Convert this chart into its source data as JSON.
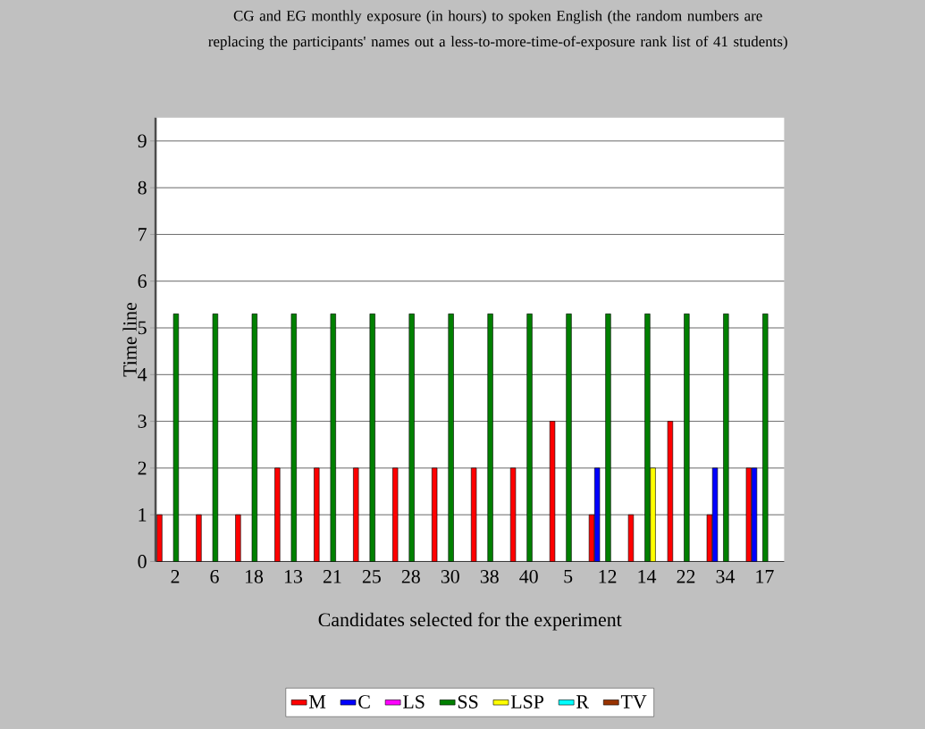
{
  "chart_data": {
    "type": "bar",
    "title": "CG and EG monthly exposure (in hours) to spoken English (the random numbers are replacing the participants' names out a less-to-more-time-of-exposure rank list of 41 students)",
    "xlabel": "Candidates selected for the experiment",
    "ylabel": "Time line",
    "categories": [
      "2",
      "6",
      "18",
      "13",
      "21",
      "25",
      "28",
      "30",
      "38",
      "40",
      "5",
      "12",
      "14",
      "22",
      "34",
      "17"
    ],
    "series": [
      {
        "name": "M",
        "color": "#ff0000",
        "values": [
          1,
          1,
          1,
          2,
          2,
          2,
          2,
          2,
          2,
          2,
          3,
          1,
          1,
          3,
          1,
          2
        ]
      },
      {
        "name": "C",
        "color": "#0000ff",
        "values": [
          null,
          null,
          null,
          null,
          null,
          null,
          null,
          null,
          null,
          null,
          null,
          2,
          null,
          null,
          2,
          2
        ]
      },
      {
        "name": "LS",
        "color": "#ff00ff",
        "values": [
          null,
          null,
          null,
          null,
          null,
          null,
          null,
          null,
          null,
          null,
          null,
          null,
          null,
          null,
          null,
          null
        ]
      },
      {
        "name": "SS",
        "color": "#008000",
        "values": [
          5.3,
          5.3,
          5.3,
          5.3,
          5.3,
          5.3,
          5.3,
          5.3,
          5.3,
          5.3,
          5.3,
          5.3,
          5.3,
          5.3,
          5.3,
          5.3
        ]
      },
      {
        "name": "LSP",
        "color": "#ffff00",
        "values": [
          null,
          null,
          null,
          null,
          null,
          null,
          null,
          null,
          null,
          null,
          null,
          null,
          2,
          null,
          null,
          null
        ]
      },
      {
        "name": "R",
        "color": "#00ffff",
        "values": [
          null,
          null,
          null,
          null,
          null,
          null,
          null,
          null,
          null,
          null,
          null,
          null,
          null,
          null,
          null,
          null
        ]
      },
      {
        "name": "TV",
        "color": "#993300",
        "values": [
          null,
          null,
          null,
          null,
          null,
          null,
          null,
          null,
          null,
          null,
          null,
          null,
          null,
          null,
          null,
          null
        ]
      }
    ],
    "ylim": [
      0,
      9.5
    ],
    "yticks": [
      0,
      1,
      2,
      3,
      4,
      5,
      6,
      7,
      8,
      9
    ],
    "grid": "y",
    "legend": "bottom"
  }
}
